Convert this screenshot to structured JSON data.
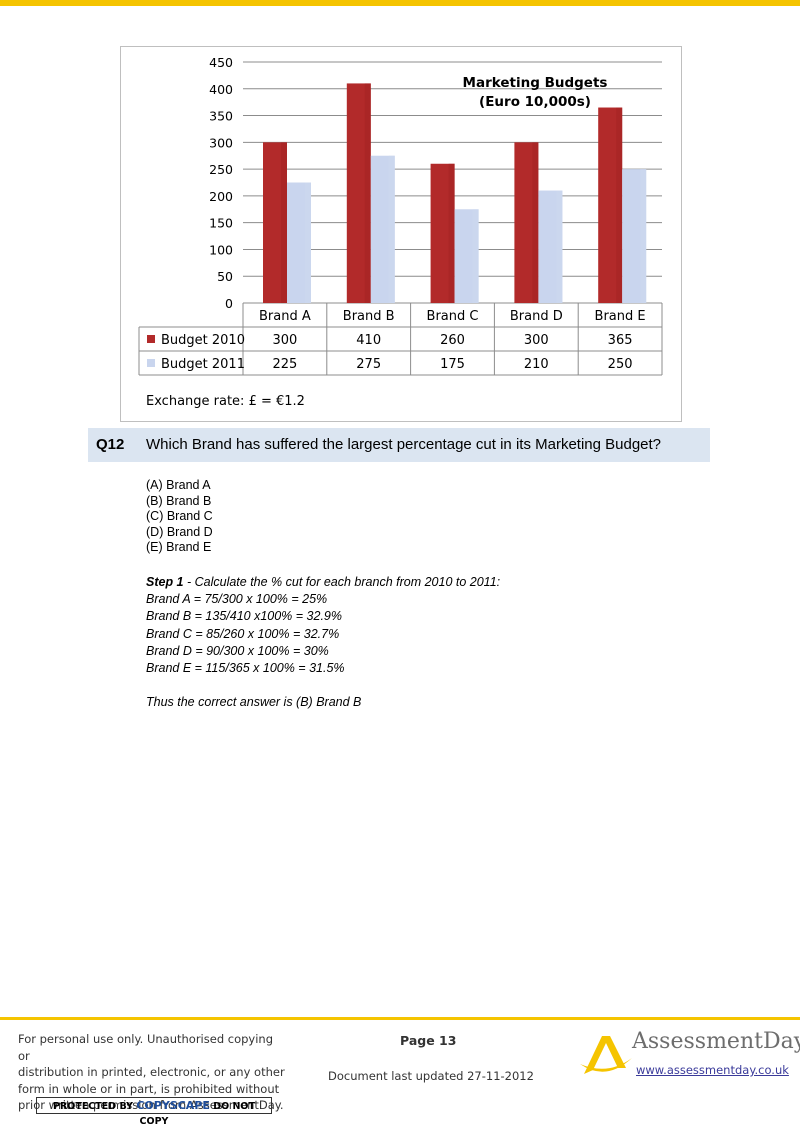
{
  "chart_data": {
    "type": "bar",
    "title": "Marketing Budgets",
    "subtitle": "(Euro 10,000s)",
    "categories": [
      "Brand A",
      "Brand B",
      "Brand C",
      "Brand D",
      "Brand E"
    ],
    "series": [
      {
        "name": "Budget 2010",
        "values": [
          300,
          410,
          260,
          300,
          365
        ],
        "color": "#b22a2a"
      },
      {
        "name": "Budget 2011",
        "values": [
          225,
          275,
          175,
          210,
          250
        ],
        "color": "#c9d5ee"
      }
    ],
    "yticks": [
      "450",
      "400",
      "350",
      "300",
      "250",
      "200",
      "150",
      "100",
      "50",
      "0"
    ],
    "ylim": [
      0,
      450
    ],
    "grid": true,
    "legend": "data-table-below",
    "table_cells": [
      [
        "300",
        "410",
        "260",
        "300",
        "365"
      ],
      [
        "225",
        "275",
        "175",
        "210",
        "250"
      ]
    ]
  },
  "chart_note": "Exchange rate: £ = €1.2",
  "question": {
    "number": "Q12",
    "text": "Which Brand has suffered the largest percentage cut in its Marketing Budget?"
  },
  "options": [
    "(A)  Brand A",
    "(B)  Brand B",
    "(C)  Brand C",
    "(D)  Brand D",
    "(E)  Brand E"
  ],
  "solution": {
    "step_label": "Step 1",
    "step_text": " - Calculate the % cut for each branch from 2010 to 2011:",
    "lines": [
      "Brand A = 75/300 x 100% = 25%",
      "Brand B = 135/410 x100% = 32.9%",
      "Brand C = 85/260 x 100% = 32.7%",
      "Brand D = 90/300 x 100% = 30%",
      "Brand E = 115/365 x 100% = 31.5%"
    ],
    "conclusion": "Thus the correct answer is (B) Brand B"
  },
  "footer": {
    "notice_lines": [
      "For personal use only. Unauthorised copying or",
      "distribution in printed, electronic, or any other",
      "form in whole or in part, is prohibited without",
      "prior written permission from AssessmentDay."
    ],
    "copyscape_prefix": "PROTECTED BY ",
    "copyscape_brand": "COPYSCAPE",
    "copyscape_suffix": " DO NOT COPY",
    "page": "Page 13",
    "updated": "Document last updated 27-11-2012",
    "logo_name": "AssessmentDay",
    "logo_url": "www.assessmentday.co.uk"
  },
  "colors": {
    "accent": "#f5c400",
    "question_band": "#dbe5f1"
  }
}
